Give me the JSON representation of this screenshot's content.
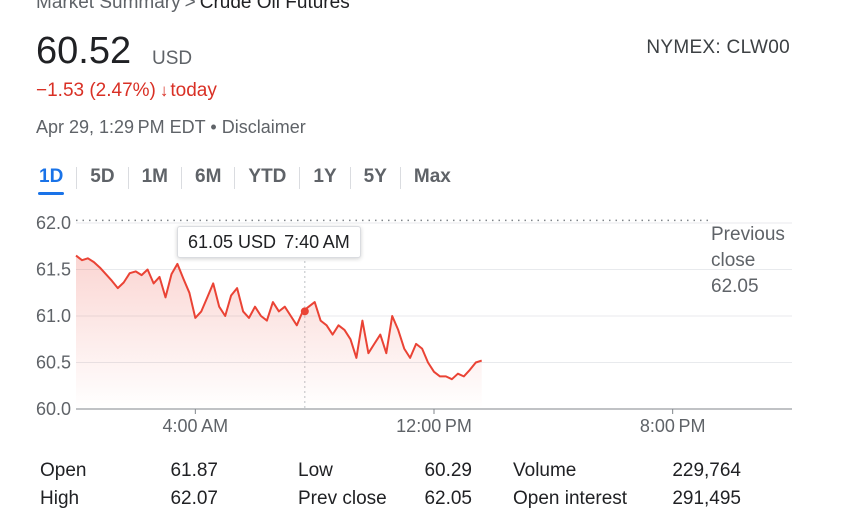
{
  "header": {
    "breadcrumb_root": "Market Summary",
    "breadcrumb_sep": ">",
    "breadcrumb_current": "Crude Oil Futures",
    "price": "60.52",
    "currency": "USD",
    "ticker": "NYMEX: CLW00",
    "change": "−1.53 (2.47%)",
    "change_arrow": "↓",
    "change_period": "today",
    "timestamp": "Apr 29, 1:29 PM EDT",
    "timestamp_sep": "•",
    "disclaimer": "Disclaimer"
  },
  "tabs": [
    {
      "label": "1D",
      "active": true
    },
    {
      "label": "5D"
    },
    {
      "label": "1M"
    },
    {
      "label": "6M"
    },
    {
      "label": "YTD"
    },
    {
      "label": "1Y"
    },
    {
      "label": "5Y"
    },
    {
      "label": "Max"
    }
  ],
  "tooltip": {
    "price": "61.05 USD",
    "time": "7:40 AM"
  },
  "previous_close": {
    "label": "Previous close",
    "value": "62.05"
  },
  "colors": {
    "accent": "#1a73e8",
    "negative": "#d93025",
    "line": "#ea4335"
  },
  "chart_data": {
    "type": "line",
    "x_unit": "hours since midnight (time of day)",
    "y_ticks": [
      "62.0",
      "61.5",
      "61.0",
      "60.5",
      "60.0"
    ],
    "x_ticks": [
      "4:00 AM",
      "12:00 PM",
      "8:00 PM"
    ],
    "ylim": [
      60.0,
      62.0
    ],
    "xlim": [
      0.0,
      24.0
    ],
    "reference_line": {
      "value": 62.05
    },
    "hover_point": {
      "x": 7.67,
      "y": 61.05
    },
    "series": [
      {
        "x": [
          0.0,
          0.2,
          0.4,
          0.6,
          0.8,
          1.0,
          1.2,
          1.4,
          1.6,
          1.8,
          2.0,
          2.2,
          2.4,
          2.6,
          2.8,
          3.0,
          3.2,
          3.4,
          3.6,
          3.8,
          4.0,
          4.2,
          4.4,
          4.6,
          4.8,
          5.0,
          5.2,
          5.4,
          5.6,
          5.8,
          6.0,
          6.2,
          6.4,
          6.6,
          6.8,
          7.0,
          7.2,
          7.4,
          7.6,
          7.8,
          8.0,
          8.2,
          8.4,
          8.6,
          8.8,
          9.0,
          9.2,
          9.4,
          9.6,
          9.8,
          10.0,
          10.2,
          10.4,
          10.6,
          10.8,
          11.0,
          11.2,
          11.4,
          11.6,
          11.8,
          12.0,
          12.2,
          12.4,
          12.6,
          12.8,
          13.0,
          13.2,
          13.4,
          13.6
        ],
        "y": [
          61.65,
          61.6,
          61.62,
          61.58,
          61.52,
          61.45,
          61.38,
          61.3,
          61.36,
          61.46,
          61.48,
          61.44,
          61.5,
          61.35,
          61.42,
          61.2,
          61.45,
          61.56,
          61.4,
          61.25,
          60.98,
          61.05,
          61.2,
          61.35,
          61.1,
          61.0,
          61.22,
          61.3,
          61.05,
          60.98,
          61.1,
          61.0,
          60.95,
          61.15,
          61.05,
          61.1,
          61.0,
          60.9,
          61.05,
          61.1,
          61.15,
          60.95,
          60.9,
          60.8,
          60.9,
          60.85,
          60.75,
          60.55,
          60.95,
          60.6,
          60.7,
          60.8,
          60.6,
          61.0,
          60.85,
          60.65,
          60.55,
          60.7,
          60.65,
          60.5,
          60.4,
          60.35,
          60.35,
          60.32,
          60.38,
          60.35,
          60.42,
          60.5,
          60.52
        ]
      }
    ]
  },
  "stats": {
    "col1": [
      {
        "label": "Open",
        "value": "61.87"
      },
      {
        "label": "High",
        "value": "62.07"
      }
    ],
    "col2": [
      {
        "label": "Low",
        "value": "60.29"
      },
      {
        "label": "Prev close",
        "value": "62.05"
      }
    ],
    "col3": [
      {
        "label": "Volume",
        "value": "229,764"
      },
      {
        "label": "Open interest",
        "value": "291,495"
      }
    ]
  }
}
